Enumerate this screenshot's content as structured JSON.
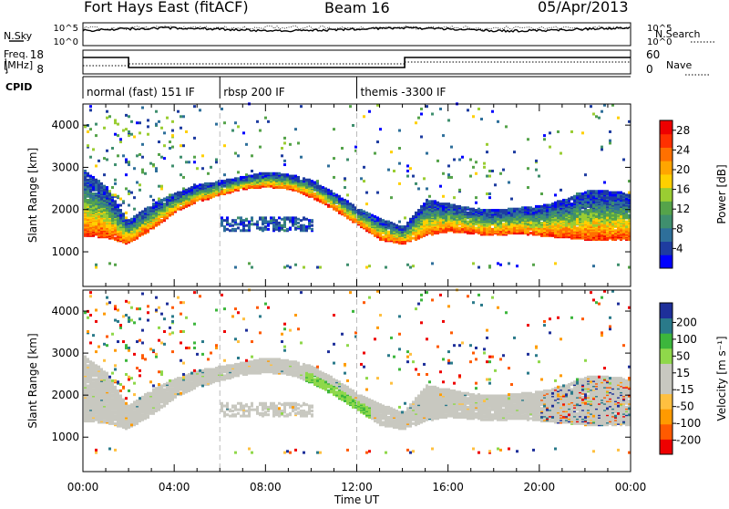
{
  "header": {
    "title": "Fort Hays East (fitACF)",
    "beam": "Beam 16",
    "date": "05/Apr/2013"
  },
  "top_panels": {
    "nsky_label": "N.Sky",
    "nsearch_label": "N.Search",
    "freq_label_1": "Freq.",
    "freq_label_2": "[MHz]",
    "nave_label": "Nave",
    "cpid_label": "CPID",
    "nsky_ticks": [
      "10^5",
      "10^0"
    ],
    "nsearch_ticks": [
      "10^5",
      "10^0"
    ],
    "freq_ticks": [
      "18",
      "8"
    ],
    "nave_ticks": [
      "60",
      "0"
    ]
  },
  "cpid_segments": [
    {
      "label": "normal (fast) 151 IF",
      "start_hour": 0
    },
    {
      "label": "rbsp 200 IF",
      "start_hour": 6
    },
    {
      "label": "themis -3300 IF",
      "start_hour": 12
    }
  ],
  "colors": {
    "power": [
      "#0000ff",
      "#1e3ca0",
      "#2e6f9a",
      "#3f8f6e",
      "#55a34a",
      "#9acd32",
      "#ffd000",
      "#ffa500",
      "#ff7000",
      "#ff3000",
      "#ee0000"
    ],
    "velocity": [
      "#ee0000",
      "#ff5a00",
      "#ff9a00",
      "#ffc040",
      "#c8c8c0",
      "#c8c8c0",
      "#8fd84a",
      "#3cb63c",
      "#2a7a8a",
      "#1e2f9a"
    ]
  },
  "chart_data": [
    {
      "type": "heatmap",
      "panel": "power",
      "xlabel": "",
      "ylabel": "Slant Range [km]",
      "x_range_hours": [
        0,
        24
      ],
      "y_range_km": [
        180,
        4500
      ],
      "yticks": [
        "4000",
        "3000",
        "2000",
        "1000"
      ],
      "ytick_values": [
        4000,
        3000,
        2000,
        1000
      ],
      "colorbar_label": "Power [dB]",
      "colorbar_ticks": [
        "28",
        "24",
        "20",
        "16",
        "12",
        "8",
        "4"
      ],
      "colorbar_values": [
        28,
        24,
        20,
        16,
        12,
        8,
        4
      ],
      "colorbar_range": [
        0,
        30
      ],
      "echo_band_lower_km": [
        [
          0,
          1350
        ],
        [
          1,
          1300
        ],
        [
          1.9,
          1150
        ],
        [
          3,
          1500
        ],
        [
          4,
          1900
        ],
        [
          5,
          2150
        ],
        [
          6,
          2300
        ],
        [
          7,
          2450
        ],
        [
          8,
          2500
        ],
        [
          9,
          2450
        ],
        [
          10,
          2250
        ],
        [
          11,
          1950
        ],
        [
          12,
          1600
        ],
        [
          13,
          1250
        ],
        [
          14,
          1150
        ],
        [
          15,
          1350
        ],
        [
          16,
          1450
        ],
        [
          17,
          1400
        ],
        [
          18,
          1350
        ],
        [
          19,
          1400
        ],
        [
          20,
          1350
        ],
        [
          21,
          1300
        ],
        [
          22,
          1250
        ],
        [
          23,
          1250
        ],
        [
          24,
          1250
        ]
      ],
      "echo_band_upper_km": [
        [
          0,
          2900
        ],
        [
          1,
          2500
        ],
        [
          1.9,
          1700
        ],
        [
          3,
          2100
        ],
        [
          4,
          2350
        ],
        [
          5,
          2550
        ],
        [
          6,
          2650
        ],
        [
          7,
          2750
        ],
        [
          8,
          2850
        ],
        [
          9,
          2800
        ],
        [
          10,
          2650
        ],
        [
          11,
          2350
        ],
        [
          12,
          2000
        ],
        [
          13,
          1750
        ],
        [
          14,
          1550
        ],
        [
          15,
          2200
        ],
        [
          16,
          2100
        ],
        [
          17,
          2000
        ],
        [
          18,
          1950
        ],
        [
          19,
          2000
        ],
        [
          20,
          2050
        ],
        [
          21,
          2200
        ],
        [
          22,
          2400
        ],
        [
          23,
          2400
        ],
        [
          24,
          2350
        ]
      ]
    },
    {
      "type": "heatmap",
      "panel": "velocity",
      "xlabel": "Time UT",
      "ylabel": "Slant Range [km]",
      "x_range_hours": [
        0,
        24
      ],
      "y_range_km": [
        180,
        4500
      ],
      "yticks": [
        "4000",
        "3000",
        "2000",
        "1000"
      ],
      "ytick_values": [
        4000,
        3000,
        2000,
        1000
      ],
      "xticks": [
        "00:00",
        "04:00",
        "08:00",
        "12:00",
        "16:00",
        "20:00",
        "00:00"
      ],
      "xtick_hours": [
        0,
        4,
        8,
        12,
        16,
        20,
        24
      ],
      "colorbar_label": "Velocity [m s⁻¹]",
      "colorbar_ticks": [
        "200",
        "100",
        "50",
        "15",
        "-15",
        "-50",
        "-100",
        "-200"
      ],
      "colorbar_values": [
        200,
        100,
        50,
        15,
        -15,
        -50,
        -100,
        -200
      ]
    }
  ]
}
